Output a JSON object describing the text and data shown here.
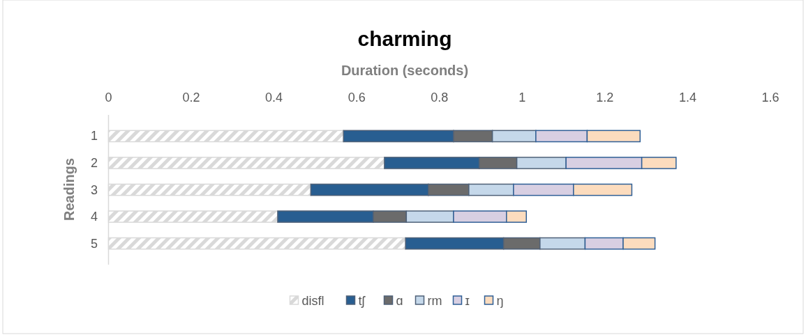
{
  "chart_data": {
    "type": "bar",
    "orientation": "horizontal",
    "stacked": true,
    "title": "charming",
    "xlabel": "Duration (seconds)",
    "ylabel": "Readings",
    "categories": [
      "1",
      "2",
      "3",
      "4",
      "5"
    ],
    "xlim": [
      0,
      1.6
    ],
    "xticks": [
      0,
      0.2,
      0.4,
      0.6,
      0.8,
      1,
      1.2,
      1.4,
      1.6
    ],
    "grid": false,
    "legend": "bottom",
    "series": [
      {
        "name": "disfl",
        "color": "#d9d9d9",
        "values": [
          0.568,
          0.667,
          0.489,
          0.409,
          0.718
        ]
      },
      {
        "name": "tʃ",
        "color": "#285e91",
        "values": [
          0.266,
          0.229,
          0.284,
          0.231,
          0.237
        ]
      },
      {
        "name": "ɑ",
        "color": "#6b6b6b",
        "values": [
          0.094,
          0.091,
          0.098,
          0.08,
          0.088
        ]
      },
      {
        "name": "rm",
        "color": "#c5d8ea",
        "values": [
          0.105,
          0.119,
          0.108,
          0.114,
          0.109
        ]
      },
      {
        "name": "ɪ",
        "color": "#d8cfe2",
        "values": [
          0.124,
          0.183,
          0.145,
          0.128,
          0.092
        ]
      },
      {
        "name": "ŋ",
        "color": "#fcdcbe",
        "values": [
          0.128,
          0.083,
          0.141,
          0.048,
          0.077
        ]
      }
    ]
  }
}
